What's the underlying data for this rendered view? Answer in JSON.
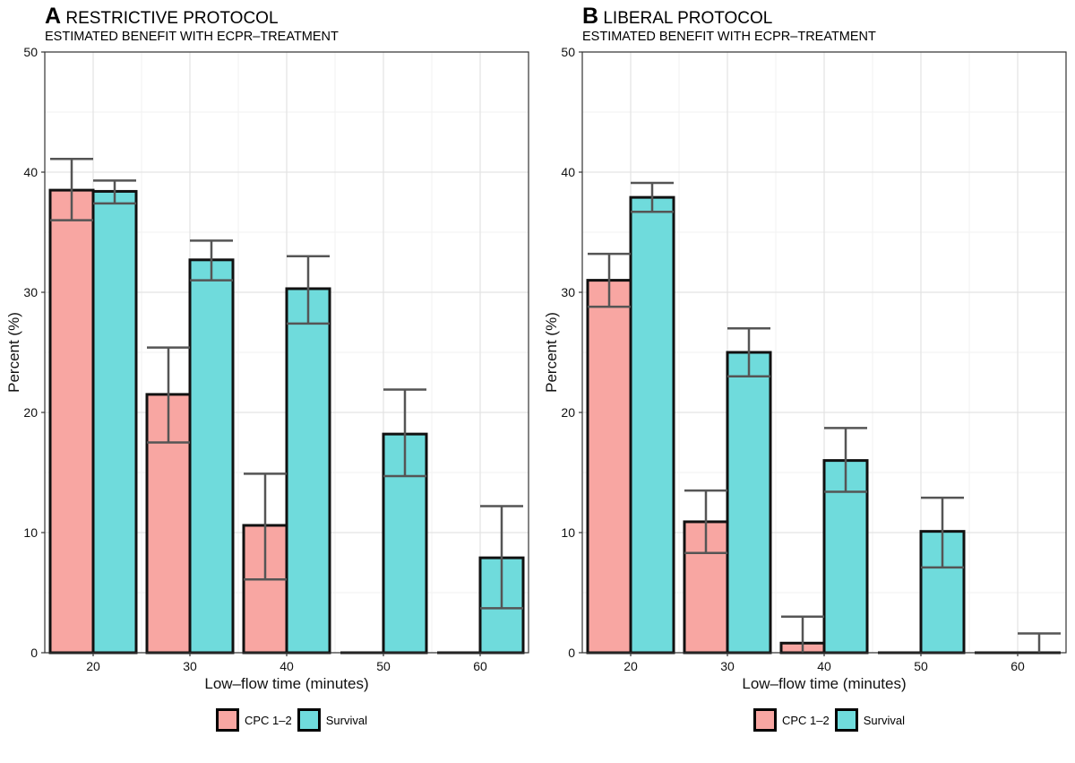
{
  "chart_data": [
    {
      "type": "bar",
      "panel_letter": "A",
      "title": "RESTRICTIVE PROTOCOL",
      "subtitle": "ESTIMATED BENEFIT WITH ECPR–TREATMENT",
      "xlabel": "Low–flow time (minutes)",
      "ylabel": "Percent (%)",
      "ylim": [
        0,
        50
      ],
      "yticks": [
        0,
        10,
        20,
        30,
        40,
        50
      ],
      "categories": [
        "20",
        "30",
        "40",
        "50",
        "60"
      ],
      "series": [
        {
          "name": "CPC 1–2",
          "color": "#F8A6A2",
          "values": [
            38.5,
            21.5,
            10.6,
            0,
            0
          ],
          "lower": [
            36.0,
            17.5,
            6.1,
            null,
            null
          ],
          "upper": [
            41.1,
            25.4,
            14.9,
            null,
            null
          ]
        },
        {
          "name": "Survival",
          "color": "#6FDBDC",
          "values": [
            38.4,
            32.7,
            30.3,
            18.2,
            7.9
          ],
          "lower": [
            37.4,
            31.0,
            27.4,
            14.7,
            3.7
          ],
          "upper": [
            39.3,
            34.3,
            33.0,
            21.9,
            12.2
          ]
        }
      ],
      "grid": true,
      "legend": "bottom"
    },
    {
      "type": "bar",
      "panel_letter": "B",
      "title": "LIBERAL PROTOCOL",
      "subtitle": "ESTIMATED BENEFIT WITH ECPR–TREATMENT",
      "xlabel": "Low–flow time (minutes)",
      "ylabel": "Percent (%)",
      "ylim": [
        0,
        50
      ],
      "yticks": [
        0,
        10,
        20,
        30,
        40,
        50
      ],
      "categories": [
        "20",
        "30",
        "40",
        "50",
        "60"
      ],
      "series": [
        {
          "name": "CPC 1–2",
          "color": "#F8A6A2",
          "values": [
            31.0,
            10.9,
            0.8,
            0,
            0
          ],
          "lower": [
            28.8,
            8.3,
            0,
            null,
            null
          ],
          "upper": [
            33.2,
            13.5,
            3.0,
            null,
            null
          ]
        },
        {
          "name": "Survival",
          "color": "#6FDBDC",
          "values": [
            37.9,
            25.0,
            16.0,
            10.1,
            0
          ],
          "lower": [
            36.7,
            23.0,
            13.4,
            7.1,
            0
          ],
          "upper": [
            39.1,
            27.0,
            18.7,
            12.9,
            1.6
          ]
        }
      ],
      "grid": true,
      "legend": "bottom"
    }
  ]
}
